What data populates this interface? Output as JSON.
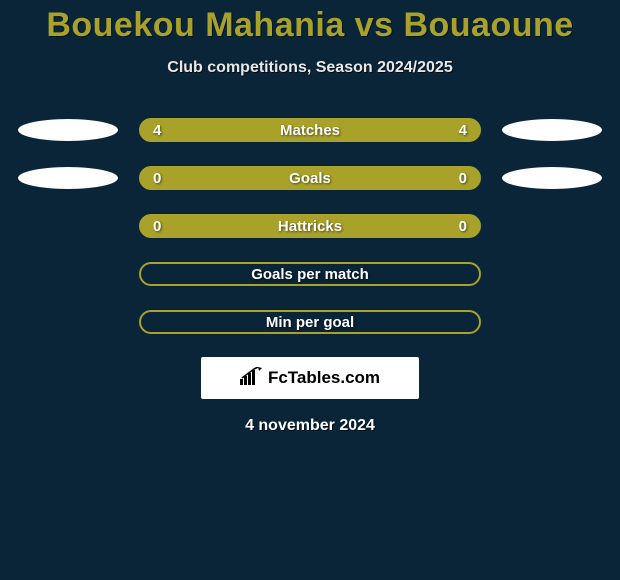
{
  "title": "Bouekou Mahania vs Bouaoune",
  "subtitle": "Club competitions, Season 2024/2025",
  "colors": {
    "background": "#0a2438",
    "accent": "#a8a22a",
    "text_light": "#ffffff",
    "logo_bg": "#ffffff",
    "logo_text": "#000000"
  },
  "rows": [
    {
      "label": "Matches",
      "left": "4",
      "right": "4",
      "filled": true,
      "show_left_ellipse": true,
      "show_right_ellipse": true
    },
    {
      "label": "Goals",
      "left": "0",
      "right": "0",
      "filled": true,
      "show_left_ellipse": true,
      "show_right_ellipse": true
    },
    {
      "label": "Hattricks",
      "left": "0",
      "right": "0",
      "filled": true,
      "show_left_ellipse": false,
      "show_right_ellipse": false
    },
    {
      "label": "Goals per match",
      "left": "",
      "right": "",
      "filled": false,
      "show_left_ellipse": false,
      "show_right_ellipse": false
    },
    {
      "label": "Min per goal",
      "left": "",
      "right": "",
      "filled": false,
      "show_left_ellipse": false,
      "show_right_ellipse": false
    }
  ],
  "logo_text": "FcTables.com",
  "date": "4 november 2024"
}
